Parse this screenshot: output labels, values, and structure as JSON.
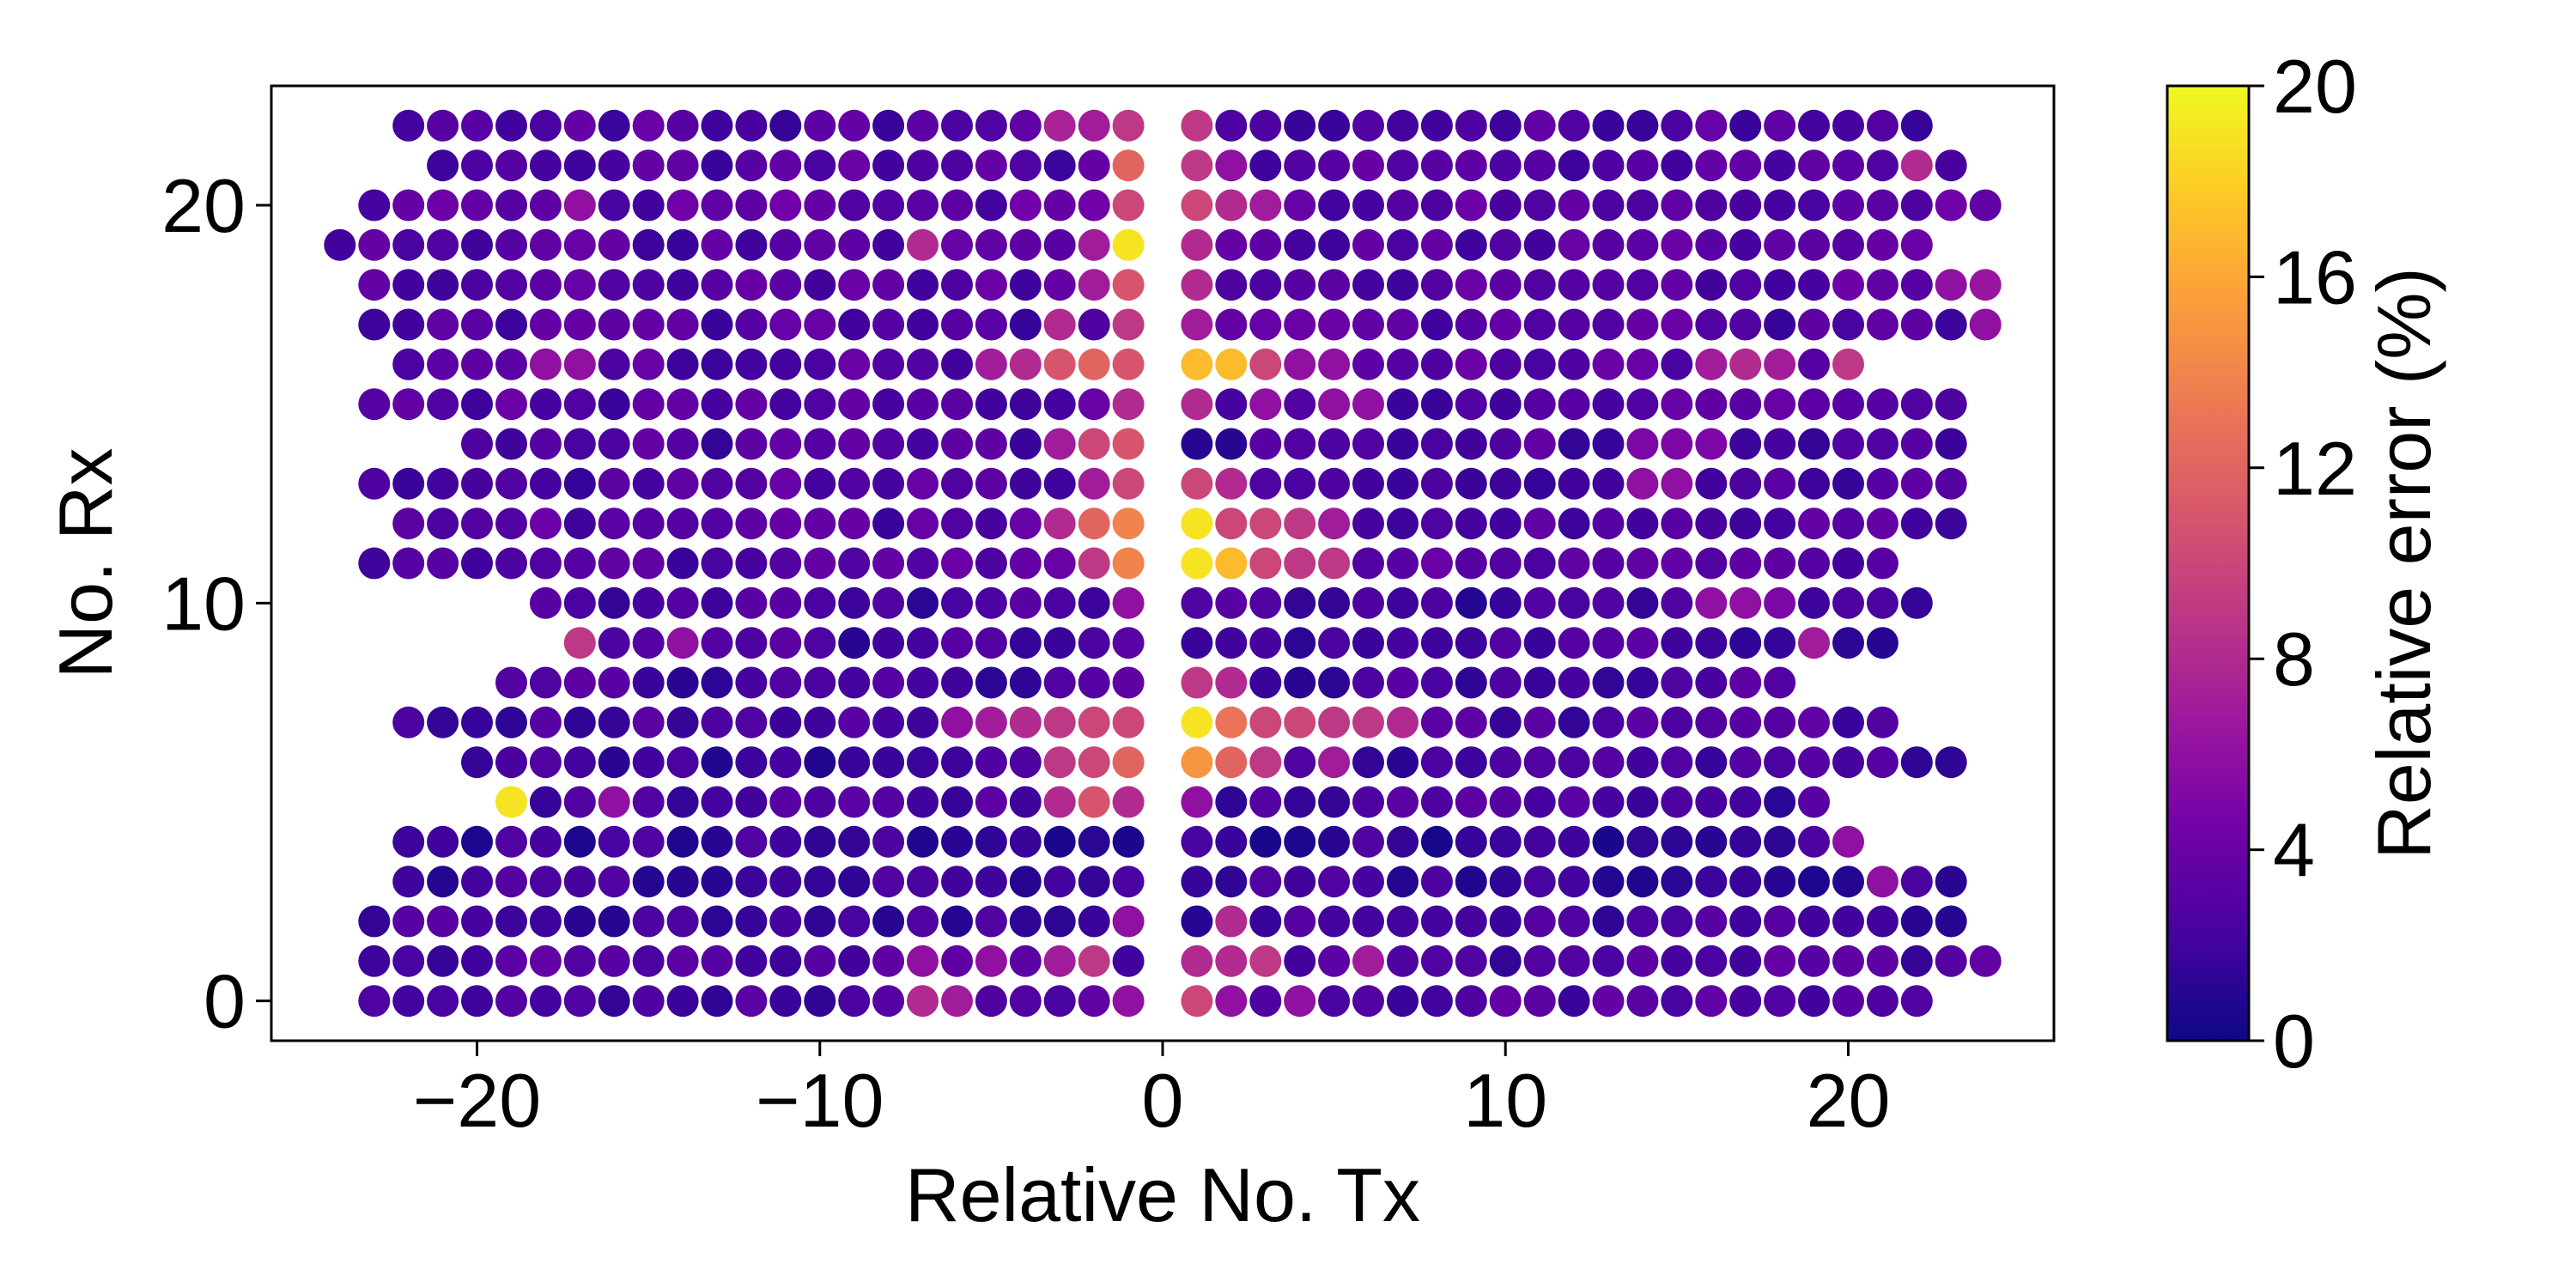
{
  "chart_data": {
    "type": "scatter",
    "xlabel": "Relative No. Tx",
    "ylabel": "No. Rx",
    "xlim": [
      -26,
      26
    ],
    "ylim": [
      -1,
      23
    ],
    "xticks": [
      -20,
      -10,
      0,
      10,
      20
    ],
    "xtick_labels": [
      "−20",
      "−10",
      "0",
      "10",
      "20"
    ],
    "yticks": [
      0,
      10,
      20
    ],
    "ytick_labels": [
      "0",
      "10",
      "20"
    ],
    "colorbar": {
      "label": "Relative error (%)",
      "min": 0,
      "max": 20,
      "ticks": [
        0,
        4,
        8,
        12,
        16,
        20
      ],
      "tick_labels": [
        "0",
        "4",
        "8",
        "12",
        "16",
        "20"
      ],
      "colormap": "plasma",
      "colormap_stops": [
        "#0d0887",
        "#46039f",
        "#7201a8",
        "#9c179e",
        "#bd3786",
        "#d8576b",
        "#ed7953",
        "#fb9f3a",
        "#fdca26",
        "#f0f921"
      ]
    },
    "grid": false,
    "note": "Rx rows 0 to 22 are sampled at integer Tx in [left, -1] and [1, right]; Tx = 0 is never sampled. Every dot in a row has that row's 'base' error except for the listed 'hot' points.",
    "rows": [
      {
        "rx": 0,
        "left": -23,
        "right": 22,
        "base": 2.5
      },
      {
        "rx": 1,
        "left": -23,
        "right": 24,
        "base": 2.6
      },
      {
        "rx": 2,
        "left": -23,
        "right": 23,
        "base": 2.0
      },
      {
        "rx": 3,
        "left": -22,
        "right": 23,
        "base": 1.8
      },
      {
        "rx": 4,
        "left": -22,
        "right": 20,
        "base": 1.6
      },
      {
        "rx": 5,
        "left": -19,
        "right": 19,
        "base": 2.2
      },
      {
        "rx": 6,
        "left": -20,
        "right": 23,
        "base": 2.0
      },
      {
        "rx": 7,
        "left": -22,
        "right": 21,
        "base": 2.4
      },
      {
        "rx": 8,
        "left": -19,
        "right": 18,
        "base": 2.3
      },
      {
        "rx": 9,
        "left": -17,
        "right": 21,
        "base": 2.2
      },
      {
        "rx": 10,
        "left": -18,
        "right": 22,
        "base": 2.0
      },
      {
        "rx": 11,
        "left": -23,
        "right": 21,
        "base": 2.8
      },
      {
        "rx": 12,
        "left": -22,
        "right": 23,
        "base": 2.9
      },
      {
        "rx": 13,
        "left": -23,
        "right": 23,
        "base": 2.7
      },
      {
        "rx": 14,
        "left": -20,
        "right": 23,
        "base": 2.6
      },
      {
        "rx": 15,
        "left": -23,
        "right": 23,
        "base": 2.8
      },
      {
        "rx": 16,
        "left": -22,
        "right": 20,
        "base": 3.0
      },
      {
        "rx": 17,
        "left": -23,
        "right": 24,
        "base": 2.8
      },
      {
        "rx": 18,
        "left": -23,
        "right": 24,
        "base": 3.0
      },
      {
        "rx": 19,
        "left": -24,
        "right": 22,
        "base": 2.9
      },
      {
        "rx": 20,
        "left": -23,
        "right": 24,
        "base": 3.2
      },
      {
        "rx": 21,
        "left": -21,
        "right": 23,
        "base": 2.9
      },
      {
        "rx": 22,
        "left": -22,
        "right": 22,
        "base": 2.8
      }
    ],
    "hot": [
      {
        "x": -1,
        "y": 22,
        "v": 9
      },
      {
        "x": -2,
        "y": 22,
        "v": 7
      },
      {
        "x": -3,
        "y": 22,
        "v": 7.5
      },
      {
        "x": 1,
        "y": 22,
        "v": 9
      },
      {
        "x": -1,
        "y": 21,
        "v": 12
      },
      {
        "x": 1,
        "y": 21,
        "v": 9
      },
      {
        "x": 2,
        "y": 21,
        "v": 6
      },
      {
        "x": 22,
        "y": 21,
        "v": 8
      },
      {
        "x": -1,
        "y": 20,
        "v": 10
      },
      {
        "x": 1,
        "y": 20,
        "v": 10
      },
      {
        "x": 2,
        "y": 20,
        "v": 8
      },
      {
        "x": 3,
        "y": 20,
        "v": 7
      },
      {
        "x": -17,
        "y": 20,
        "v": 6
      },
      {
        "x": -1,
        "y": 19,
        "v": 19
      },
      {
        "x": -2,
        "y": 19,
        "v": 7
      },
      {
        "x": -7,
        "y": 19,
        "v": 8
      },
      {
        "x": 1,
        "y": 19,
        "v": 8
      },
      {
        "x": -1,
        "y": 18,
        "v": 11
      },
      {
        "x": -2,
        "y": 18,
        "v": 7
      },
      {
        "x": 1,
        "y": 18,
        "v": 8
      },
      {
        "x": 23,
        "y": 18,
        "v": 6
      },
      {
        "x": 24,
        "y": 18,
        "v": 6.5
      },
      {
        "x": -1,
        "y": 17,
        "v": 9
      },
      {
        "x": -3,
        "y": 17,
        "v": 8
      },
      {
        "x": 1,
        "y": 17,
        "v": 7
      },
      {
        "x": 24,
        "y": 17,
        "v": 6
      },
      {
        "x": -1,
        "y": 16,
        "v": 11
      },
      {
        "x": -2,
        "y": 16,
        "v": 12
      },
      {
        "x": -3,
        "y": 16,
        "v": 11
      },
      {
        "x": -4,
        "y": 16,
        "v": 8
      },
      {
        "x": -5,
        "y": 16,
        "v": 7
      },
      {
        "x": -18,
        "y": 16,
        "v": 6
      },
      {
        "x": -17,
        "y": 16,
        "v": 6
      },
      {
        "x": 1,
        "y": 16,
        "v": 17
      },
      {
        "x": 2,
        "y": 16,
        "v": 17
      },
      {
        "x": 3,
        "y": 16,
        "v": 10
      },
      {
        "x": 4,
        "y": 16,
        "v": 6
      },
      {
        "x": 5,
        "y": 16,
        "v": 6
      },
      {
        "x": 16,
        "y": 16,
        "v": 7
      },
      {
        "x": 17,
        "y": 16,
        "v": 8
      },
      {
        "x": 18,
        "y": 16,
        "v": 7
      },
      {
        "x": 20,
        "y": 16,
        "v": 9
      },
      {
        "x": -1,
        "y": 15,
        "v": 8
      },
      {
        "x": 1,
        "y": 15,
        "v": 8
      },
      {
        "x": 3,
        "y": 15,
        "v": 6
      },
      {
        "x": 5,
        "y": 15,
        "v": 6
      },
      {
        "x": 6,
        "y": 15,
        "v": 6
      },
      {
        "x": -1,
        "y": 14,
        "v": 11
      },
      {
        "x": -2,
        "y": 14,
        "v": 10
      },
      {
        "x": -3,
        "y": 14,
        "v": 7
      },
      {
        "x": 1,
        "y": 14,
        "v": 1
      },
      {
        "x": 2,
        "y": 14,
        "v": 1
      },
      {
        "x": 14,
        "y": 14,
        "v": 5
      },
      {
        "x": 15,
        "y": 14,
        "v": 5
      },
      {
        "x": 16,
        "y": 14,
        "v": 5
      },
      {
        "x": -1,
        "y": 13,
        "v": 10
      },
      {
        "x": -2,
        "y": 13,
        "v": 7
      },
      {
        "x": 1,
        "y": 13,
        "v": 10
      },
      {
        "x": 2,
        "y": 13,
        "v": 8
      },
      {
        "x": 14,
        "y": 13,
        "v": 6
      },
      {
        "x": 15,
        "y": 13,
        "v": 6
      },
      {
        "x": -1,
        "y": 12,
        "v": 14
      },
      {
        "x": -2,
        "y": 12,
        "v": 12
      },
      {
        "x": -3,
        "y": 12,
        "v": 8
      },
      {
        "x": 1,
        "y": 12,
        "v": 19
      },
      {
        "x": 2,
        "y": 12,
        "v": 10
      },
      {
        "x": 3,
        "y": 12,
        "v": 10
      },
      {
        "x": 4,
        "y": 12,
        "v": 9
      },
      {
        "x": 5,
        "y": 12,
        "v": 7
      },
      {
        "x": -1,
        "y": 11,
        "v": 14
      },
      {
        "x": -2,
        "y": 11,
        "v": 9
      },
      {
        "x": 1,
        "y": 11,
        "v": 19
      },
      {
        "x": 2,
        "y": 11,
        "v": 17
      },
      {
        "x": 3,
        "y": 11,
        "v": 10
      },
      {
        "x": 4,
        "y": 11,
        "v": 9
      },
      {
        "x": 5,
        "y": 11,
        "v": 9
      },
      {
        "x": -1,
        "y": 10,
        "v": 6
      },
      {
        "x": 16,
        "y": 10,
        "v": 6
      },
      {
        "x": 17,
        "y": 10,
        "v": 6
      },
      {
        "x": 18,
        "y": 10,
        "v": 5
      },
      {
        "x": -17,
        "y": 9,
        "v": 9
      },
      {
        "x": -14,
        "y": 9,
        "v": 6
      },
      {
        "x": 19,
        "y": 9,
        "v": 7
      },
      {
        "x": 1,
        "y": 8,
        "v": 9
      },
      {
        "x": 2,
        "y": 8,
        "v": 8
      },
      {
        "x": -1,
        "y": 7,
        "v": 10
      },
      {
        "x": -2,
        "y": 7,
        "v": 10
      },
      {
        "x": -3,
        "y": 7,
        "v": 9
      },
      {
        "x": -4,
        "y": 7,
        "v": 8
      },
      {
        "x": -5,
        "y": 7,
        "v": 7
      },
      {
        "x": -6,
        "y": 7,
        "v": 6
      },
      {
        "x": 1,
        "y": 7,
        "v": 19
      },
      {
        "x": 2,
        "y": 7,
        "v": 13
      },
      {
        "x": 3,
        "y": 7,
        "v": 10
      },
      {
        "x": 4,
        "y": 7,
        "v": 10
      },
      {
        "x": 5,
        "y": 7,
        "v": 9
      },
      {
        "x": 6,
        "y": 7,
        "v": 9
      },
      {
        "x": 7,
        "y": 7,
        "v": 8
      },
      {
        "x": -1,
        "y": 6,
        "v": 12
      },
      {
        "x": -2,
        "y": 6,
        "v": 10
      },
      {
        "x": -3,
        "y": 6,
        "v": 9
      },
      {
        "x": 1,
        "y": 6,
        "v": 15
      },
      {
        "x": 2,
        "y": 6,
        "v": 12
      },
      {
        "x": 3,
        "y": 6,
        "v": 9
      },
      {
        "x": 5,
        "y": 6,
        "v": 7
      },
      {
        "x": -19,
        "y": 5,
        "v": 19
      },
      {
        "x": -1,
        "y": 5,
        "v": 8
      },
      {
        "x": -2,
        "y": 5,
        "v": 11
      },
      {
        "x": -3,
        "y": 5,
        "v": 8
      },
      {
        "x": -16,
        "y": 5,
        "v": 6
      },
      {
        "x": 1,
        "y": 5,
        "v": 6
      },
      {
        "x": 20,
        "y": 4,
        "v": 6
      },
      {
        "x": 21,
        "y": 3,
        "v": 6
      },
      {
        "x": -1,
        "y": 2,
        "v": 6
      },
      {
        "x": 2,
        "y": 2,
        "v": 8
      },
      {
        "x": -2,
        "y": 1,
        "v": 9
      },
      {
        "x": -3,
        "y": 1,
        "v": 7
      },
      {
        "x": -5,
        "y": 1,
        "v": 6
      },
      {
        "x": -7,
        "y": 1,
        "v": 6
      },
      {
        "x": 1,
        "y": 1,
        "v": 8
      },
      {
        "x": 2,
        "y": 1,
        "v": 8
      },
      {
        "x": 3,
        "y": 1,
        "v": 9
      },
      {
        "x": 6,
        "y": 1,
        "v": 7
      },
      {
        "x": -1,
        "y": 0,
        "v": 6
      },
      {
        "x": -7,
        "y": 0,
        "v": 8
      },
      {
        "x": -6,
        "y": 0,
        "v": 7
      },
      {
        "x": 1,
        "y": 0,
        "v": 10
      },
      {
        "x": 2,
        "y": 0,
        "v": 6
      },
      {
        "x": 4,
        "y": 0,
        "v": 6
      }
    ]
  }
}
